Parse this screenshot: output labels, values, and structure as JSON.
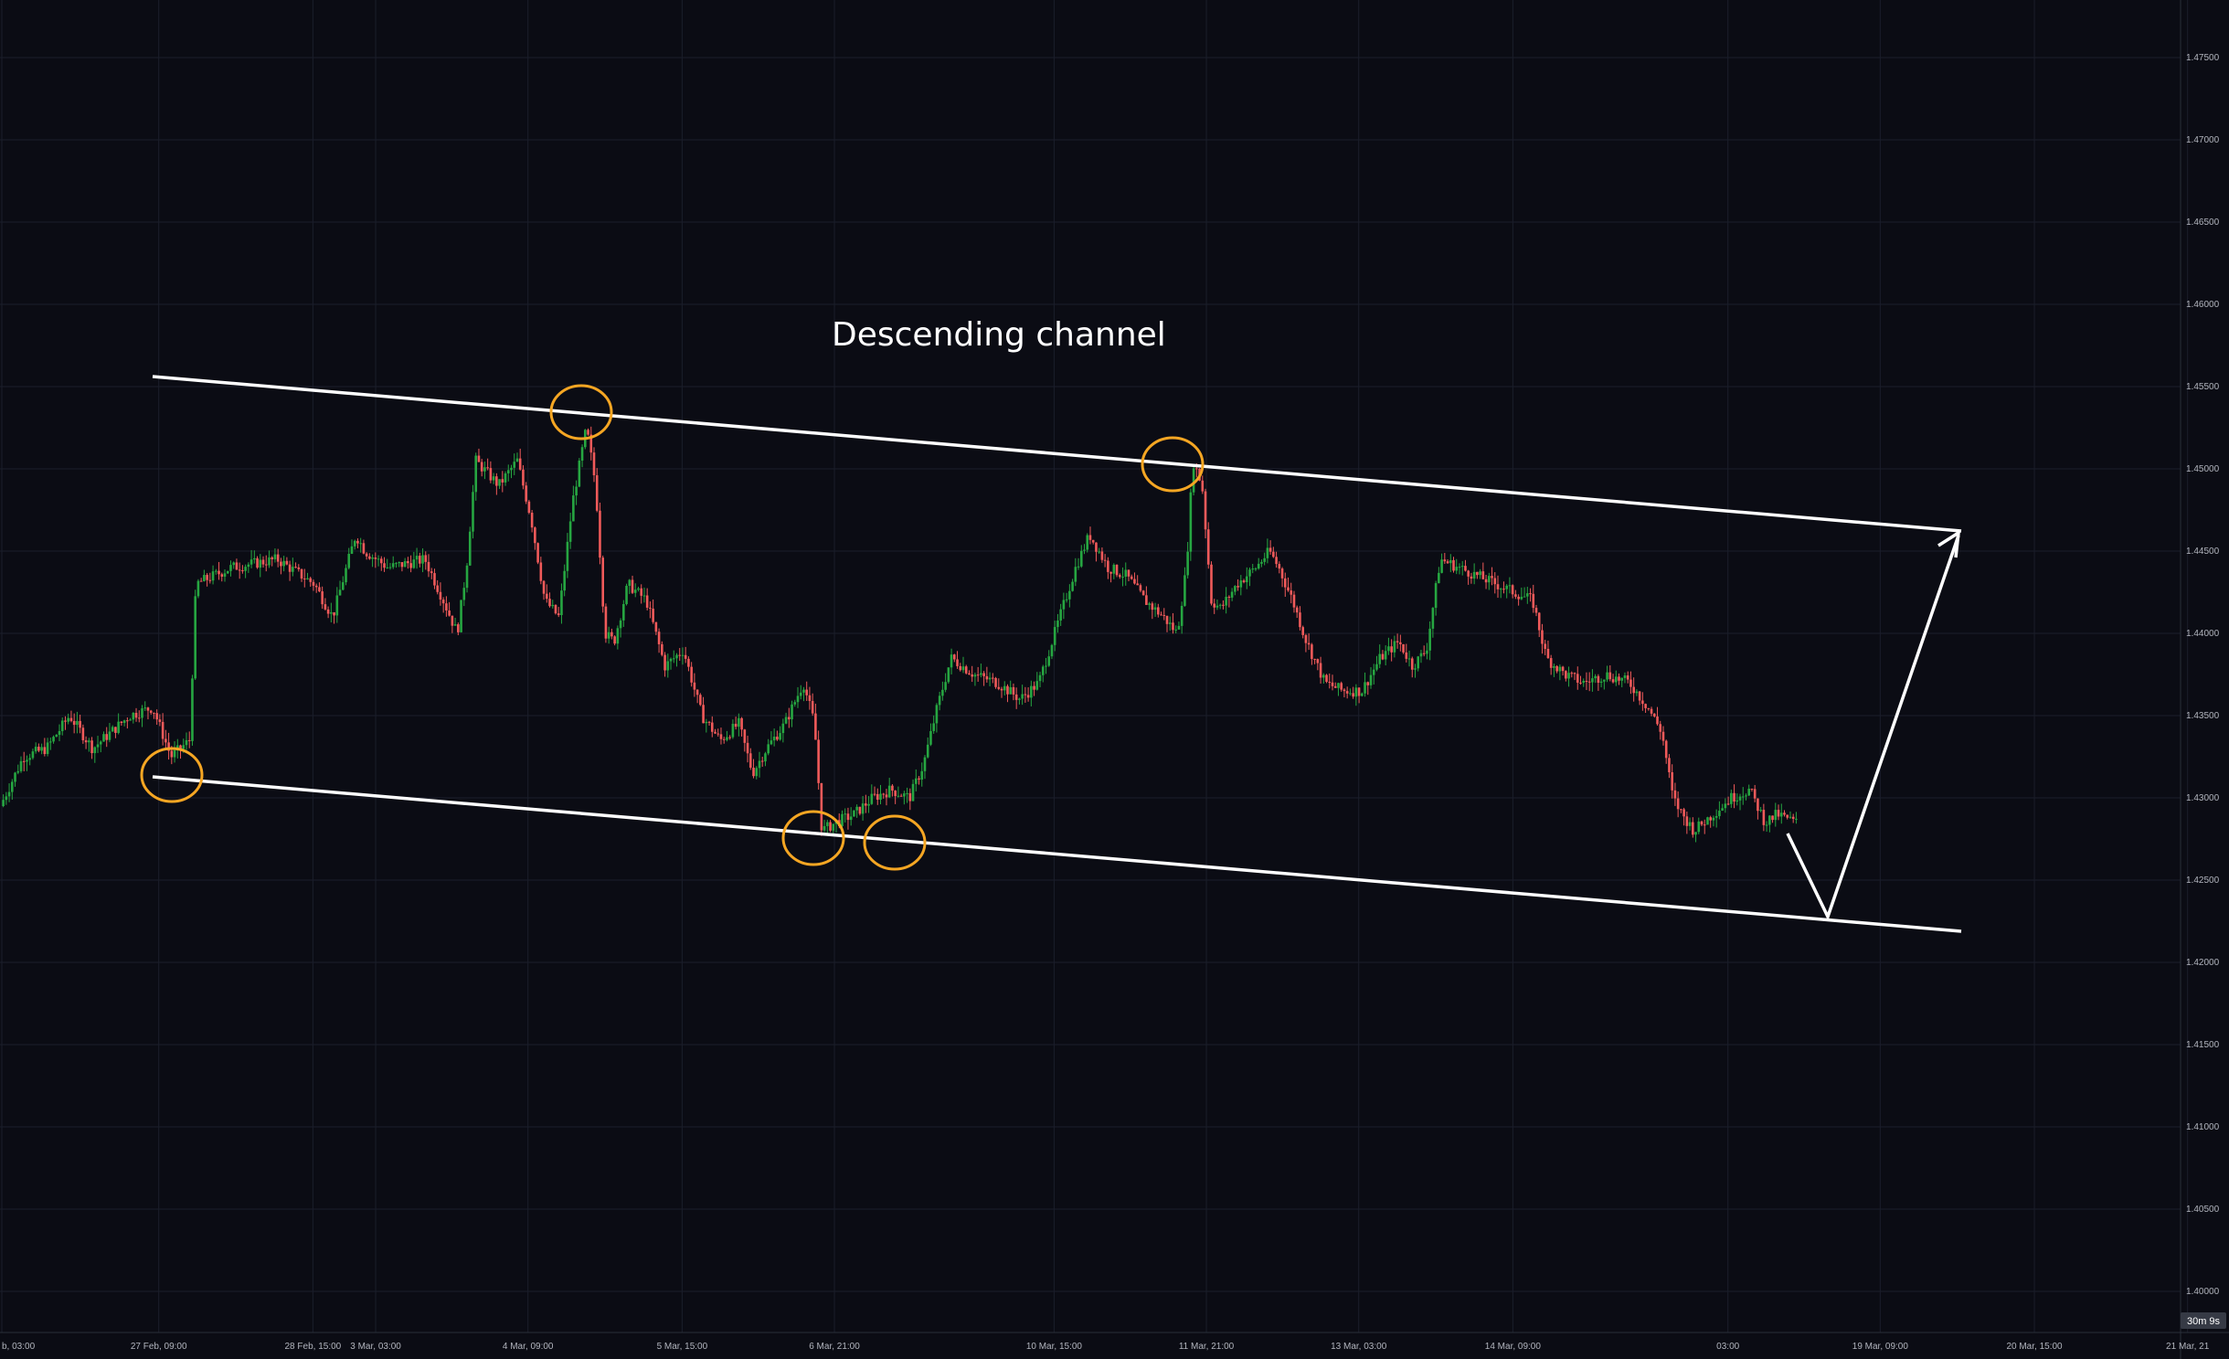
{
  "chart_data": {
    "type": "candlestick",
    "annotation": "Descending channel",
    "countdown": "30m 9s",
    "ylim": [
      1.3985,
      1.4785
    ],
    "y_ticks": [
      {
        "value": 1.475,
        "label": "1.47500"
      },
      {
        "value": 1.47,
        "label": "1.47000"
      },
      {
        "value": 1.465,
        "label": "1.46500"
      },
      {
        "value": 1.46,
        "label": "1.46000"
      },
      {
        "value": 1.455,
        "label": "1.45500"
      },
      {
        "value": 1.45,
        "label": "1.45000"
      },
      {
        "value": 1.445,
        "label": "1.44500"
      },
      {
        "value": 1.44,
        "label": "1.44000"
      },
      {
        "value": 1.435,
        "label": "1.43500"
      },
      {
        "value": 1.43,
        "label": "1.43000"
      },
      {
        "value": 1.425,
        "label": "1.42500"
      },
      {
        "value": 1.42,
        "label": "1.42000"
      },
      {
        "value": 1.415,
        "label": "1.41500"
      },
      {
        "value": 1.41,
        "label": "1.41000"
      },
      {
        "value": 1.405,
        "label": "1.40500"
      },
      {
        "value": 1.4,
        "label": "1.40000"
      }
    ],
    "x_ticks": [
      {
        "t": 0,
        "label": "b, 03:00"
      },
      {
        "t": 170,
        "label": "27 Feb, 09:00"
      },
      {
        "t": 337,
        "label": "28 Feb, 15:00"
      },
      {
        "t": 405,
        "label": "3 Mar, 03:00"
      },
      {
        "t": 570,
        "label": "4 Mar, 09:00"
      },
      {
        "t": 737,
        "label": "5 Mar, 15:00"
      },
      {
        "t": 902,
        "label": "6 Mar, 21:00"
      },
      {
        "t": 1140,
        "label": "10 Mar, 15:00"
      },
      {
        "t": 1305,
        "label": "11 Mar, 21:00"
      },
      {
        "t": 1470,
        "label": "13 Mar, 03:00"
      },
      {
        "t": 1637,
        "label": "14 Mar, 09:00"
      },
      {
        "t": 1870,
        "label": "03:00"
      },
      {
        "t": 2035,
        "label": "19 Mar, 09:00"
      },
      {
        "t": 2202,
        "label": "20 Mar, 15:00"
      },
      {
        "t": 2368,
        "label": "21 Mar, 21"
      }
    ],
    "price_path": [
      {
        "t": 0,
        "p": 1.4295
      },
      {
        "t": 25,
        "p": 1.4325
      },
      {
        "t": 50,
        "p": 1.433
      },
      {
        "t": 75,
        "p": 1.435
      },
      {
        "t": 100,
        "p": 1.433
      },
      {
        "t": 140,
        "p": 1.435
      },
      {
        "t": 165,
        "p": 1.4355
      },
      {
        "t": 185,
        "p": 1.4325
      },
      {
        "t": 205,
        "p": 1.4335
      },
      {
        "t": 212,
        "p": 1.443
      },
      {
        "t": 250,
        "p": 1.444
      },
      {
        "t": 300,
        "p": 1.4445
      },
      {
        "t": 340,
        "p": 1.443
      },
      {
        "t": 360,
        "p": 1.441
      },
      {
        "t": 385,
        "p": 1.446
      },
      {
        "t": 395,
        "p": 1.445
      },
      {
        "t": 420,
        "p": 1.444
      },
      {
        "t": 460,
        "p": 1.4445
      },
      {
        "t": 480,
        "p": 1.442
      },
      {
        "t": 495,
        "p": 1.44
      },
      {
        "t": 505,
        "p": 1.444
      },
      {
        "t": 515,
        "p": 1.4505
      },
      {
        "t": 540,
        "p": 1.449
      },
      {
        "t": 560,
        "p": 1.4505
      },
      {
        "t": 575,
        "p": 1.447
      },
      {
        "t": 590,
        "p": 1.442
      },
      {
        "t": 605,
        "p": 1.441
      },
      {
        "t": 620,
        "p": 1.448
      },
      {
        "t": 635,
        "p": 1.4525
      },
      {
        "t": 645,
        "p": 1.449
      },
      {
        "t": 655,
        "p": 1.44
      },
      {
        "t": 665,
        "p": 1.4395
      },
      {
        "t": 680,
        "p": 1.443
      },
      {
        "t": 700,
        "p": 1.442
      },
      {
        "t": 720,
        "p": 1.438
      },
      {
        "t": 740,
        "p": 1.439
      },
      {
        "t": 760,
        "p": 1.435
      },
      {
        "t": 780,
        "p": 1.4335
      },
      {
        "t": 800,
        "p": 1.4345
      },
      {
        "t": 815,
        "p": 1.4315
      },
      {
        "t": 830,
        "p": 1.433
      },
      {
        "t": 850,
        "p": 1.4345
      },
      {
        "t": 870,
        "p": 1.437
      },
      {
        "t": 882,
        "p": 1.4345
      },
      {
        "t": 890,
        "p": 1.428
      },
      {
        "t": 905,
        "p": 1.4285
      },
      {
        "t": 925,
        "p": 1.429
      },
      {
        "t": 945,
        "p": 1.43
      },
      {
        "t": 965,
        "p": 1.4305
      },
      {
        "t": 985,
        "p": 1.43
      },
      {
        "t": 1000,
        "p": 1.432
      },
      {
        "t": 1015,
        "p": 1.4355
      },
      {
        "t": 1030,
        "p": 1.4385
      },
      {
        "t": 1055,
        "p": 1.4375
      },
      {
        "t": 1080,
        "p": 1.437
      },
      {
        "t": 1105,
        "p": 1.436
      },
      {
        "t": 1125,
        "p": 1.437
      },
      {
        "t": 1145,
        "p": 1.4405
      },
      {
        "t": 1165,
        "p": 1.444
      },
      {
        "t": 1180,
        "p": 1.446
      },
      {
        "t": 1200,
        "p": 1.444
      },
      {
        "t": 1220,
        "p": 1.4435
      },
      {
        "t": 1240,
        "p": 1.442
      },
      {
        "t": 1260,
        "p": 1.441
      },
      {
        "t": 1275,
        "p": 1.44
      },
      {
        "t": 1285,
        "p": 1.444
      },
      {
        "t": 1292,
        "p": 1.4505
      },
      {
        "t": 1302,
        "p": 1.449
      },
      {
        "t": 1312,
        "p": 1.442
      },
      {
        "t": 1322,
        "p": 1.4415
      },
      {
        "t": 1340,
        "p": 1.443
      },
      {
        "t": 1360,
        "p": 1.444
      },
      {
        "t": 1375,
        "p": 1.445
      },
      {
        "t": 1385,
        "p": 1.444
      },
      {
        "t": 1400,
        "p": 1.442
      },
      {
        "t": 1415,
        "p": 1.4395
      },
      {
        "t": 1435,
        "p": 1.437
      },
      {
        "t": 1455,
        "p": 1.4365
      },
      {
        "t": 1475,
        "p": 1.4365
      },
      {
        "t": 1495,
        "p": 1.4385
      },
      {
        "t": 1515,
        "p": 1.4395
      },
      {
        "t": 1530,
        "p": 1.438
      },
      {
        "t": 1545,
        "p": 1.439
      },
      {
        "t": 1560,
        "p": 1.4445
      },
      {
        "t": 1580,
        "p": 1.444
      },
      {
        "t": 1600,
        "p": 1.4435
      },
      {
        "t": 1620,
        "p": 1.443
      },
      {
        "t": 1640,
        "p": 1.4425
      },
      {
        "t": 1660,
        "p": 1.442
      },
      {
        "t": 1675,
        "p": 1.4385
      },
      {
        "t": 1695,
        "p": 1.4375
      },
      {
        "t": 1715,
        "p": 1.437
      },
      {
        "t": 1740,
        "p": 1.4375
      },
      {
        "t": 1765,
        "p": 1.437
      },
      {
        "t": 1785,
        "p": 1.4355
      },
      {
        "t": 1800,
        "p": 1.434
      },
      {
        "t": 1812,
        "p": 1.43
      },
      {
        "t": 1822,
        "p": 1.429
      },
      {
        "t": 1835,
        "p": 1.428
      },
      {
        "t": 1855,
        "p": 1.429
      },
      {
        "t": 1875,
        "p": 1.43
      },
      {
        "t": 1895,
        "p": 1.4305
      },
      {
        "t": 1912,
        "p": 1.4285
      },
      {
        "t": 1925,
        "p": 1.429
      },
      {
        "t": 1945,
        "p": 1.4285
      }
    ]
  }
}
